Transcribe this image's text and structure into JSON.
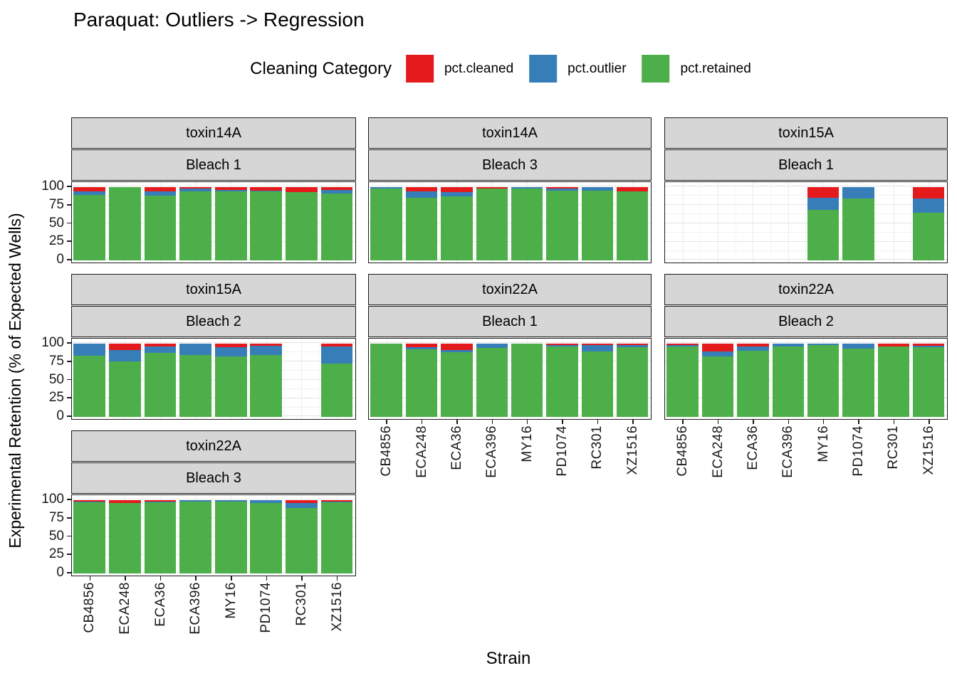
{
  "title": "Paraquat: Outliers -> Regression",
  "legend": {
    "title": "Cleaning Category",
    "items": [
      {
        "label": "pct.cleaned",
        "color": "#E41A1C"
      },
      {
        "label": "pct.outlier",
        "color": "#377EB8"
      },
      {
        "label": "pct.retained",
        "color": "#4DAF4A"
      }
    ]
  },
  "axes": {
    "y_title": "Experimental Retention (% of Expected Wells)",
    "x_title": "Strain",
    "y_tick_labels": [
      "100",
      "75",
      "50",
      "25",
      "0"
    ]
  },
  "chart_data": {
    "type": "bar",
    "stacked": true,
    "title": "Paraquat: Outliers -> Regression",
    "xlabel": "Strain",
    "ylabel": "Experimental Retention (% of Expected Wells)",
    "legend_title": "Cleaning Category",
    "legend_position": "top",
    "ylim": [
      0,
      100
    ],
    "yticks": [
      0,
      25,
      50,
      75,
      100
    ],
    "grid": true,
    "categories": [
      "CB4856",
      "ECA248",
      "ECA36",
      "ECA396",
      "MY16",
      "PD1074",
      "RC301",
      "XZ1516"
    ],
    "series_names": [
      "pct.cleaned",
      "pct.outlier",
      "pct.retained"
    ],
    "colors": {
      "pct.cleaned": "#E41A1C",
      "pct.outlier": "#377EB8",
      "pct.retained": "#4DAF4A"
    },
    "facets": [
      {
        "toxin": "toxin14A",
        "bleach": "Bleach 1",
        "row": 0,
        "col": 0,
        "show_x_labels": false,
        "show_y_labels": true,
        "values": {
          "pct.cleaned": [
            6,
            0,
            6,
            2,
            4,
            5,
            7,
            4
          ],
          "pct.outlier": [
            5,
            0,
            6,
            4,
            2,
            1,
            0,
            5
          ],
          "pct.retained": [
            89,
            100,
            88,
            94,
            94,
            94,
            93,
            91
          ]
        }
      },
      {
        "toxin": "toxin14A",
        "bleach": "Bleach 3",
        "row": 0,
        "col": 1,
        "show_x_labels": false,
        "show_y_labels": false,
        "values": {
          "pct.cleaned": [
            0,
            6,
            7,
            2,
            0,
            2,
            0,
            6
          ],
          "pct.outlier": [
            2,
            9,
            6,
            0,
            2,
            3,
            5,
            0
          ],
          "pct.retained": [
            98,
            85,
            87,
            98,
            98,
            95,
            95,
            94
          ]
        }
      },
      {
        "toxin": "toxin15A",
        "bleach": "Bleach 1",
        "row": 0,
        "col": 2,
        "show_x_labels": false,
        "show_y_labels": false,
        "values": {
          "pct.cleaned": [
            null,
            null,
            null,
            null,
            15,
            0,
            null,
            16
          ],
          "pct.outlier": [
            null,
            null,
            null,
            null,
            16,
            16,
            null,
            19
          ],
          "pct.retained": [
            null,
            null,
            null,
            null,
            69,
            84,
            null,
            65
          ]
        }
      },
      {
        "toxin": "toxin15A",
        "bleach": "Bleach 2",
        "row": 1,
        "col": 0,
        "show_x_labels": false,
        "show_y_labels": true,
        "values": {
          "pct.cleaned": [
            0,
            9,
            4,
            0,
            5,
            3,
            null,
            4
          ],
          "pct.outlier": [
            17,
            16,
            9,
            16,
            13,
            13,
            null,
            24
          ],
          "pct.retained": [
            83,
            75,
            87,
            84,
            82,
            84,
            null,
            72
          ]
        }
      },
      {
        "toxin": "toxin22A",
        "bleach": "Bleach 1",
        "row": 1,
        "col": 1,
        "show_x_labels": true,
        "show_y_labels": false,
        "values": {
          "pct.cleaned": [
            0,
            5,
            9,
            0,
            0,
            2,
            2,
            2
          ],
          "pct.outlier": [
            0,
            3,
            3,
            6,
            0,
            2,
            9,
            3
          ],
          "pct.retained": [
            100,
            92,
            88,
            94,
            100,
            96,
            89,
            95
          ]
        }
      },
      {
        "toxin": "toxin22A",
        "bleach": "Bleach 2",
        "row": 1,
        "col": 2,
        "show_x_labels": true,
        "show_y_labels": false,
        "values": {
          "pct.cleaned": [
            2,
            11,
            4,
            0,
            0,
            0,
            4,
            3
          ],
          "pct.outlier": [
            2,
            7,
            6,
            4,
            2,
            7,
            0,
            2
          ],
          "pct.retained": [
            96,
            82,
            90,
            96,
            98,
            93,
            96,
            95
          ]
        }
      },
      {
        "toxin": "toxin22A",
        "bleach": "Bleach 3",
        "row": 2,
        "col": 0,
        "show_x_labels": true,
        "show_y_labels": true,
        "values": {
          "pct.cleaned": [
            2,
            4,
            2,
            0,
            0,
            0,
            4,
            2
          ],
          "pct.outlier": [
            1,
            0,
            1,
            2,
            2,
            4,
            7,
            1
          ],
          "pct.retained": [
            97,
            96,
            97,
            98,
            98,
            96,
            89,
            97
          ]
        }
      }
    ]
  }
}
